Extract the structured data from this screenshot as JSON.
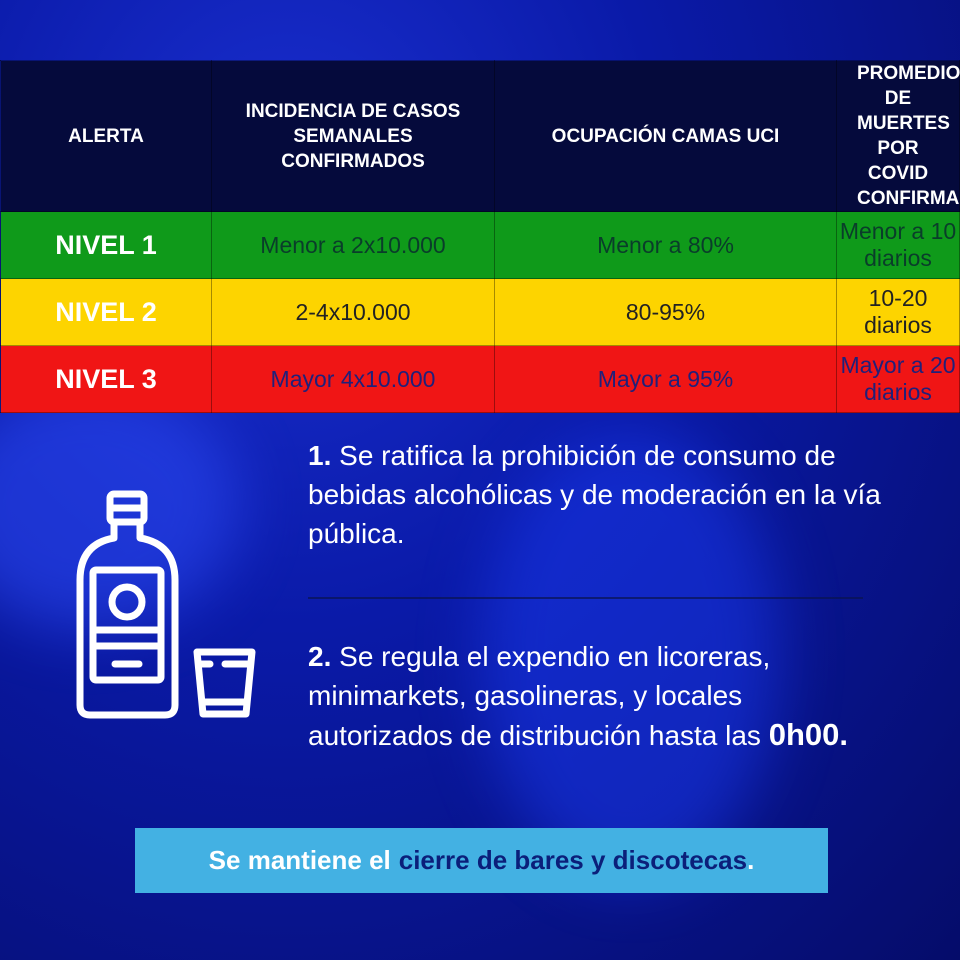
{
  "table": {
    "headers": [
      "ALERTA",
      "INCIDENCIA DE CASOS SEMANALES CONFIRMADOS",
      "OCUPACIÓN CAMAS UCI",
      "PROMEDIO DE MUERTES POR COVID CONFIRMADO"
    ],
    "rows": [
      {
        "level": "NIVEL 1",
        "incidence": "Menor a 2x10.000",
        "icu": "Menor a 80%",
        "deaths": "Menor a 10 diarios",
        "color": "#0f9a1a"
      },
      {
        "level": "NIVEL 2",
        "incidence": "2-4x10.000",
        "icu": "80-95%",
        "deaths": "10-20 diarios",
        "color": "#fdd400"
      },
      {
        "level": "NIVEL 3",
        "incidence": "Mayor 4x10.000",
        "icu": "Mayor a 95%",
        "deaths": "Mayor a 20 diarios",
        "color": "#f01515"
      }
    ]
  },
  "icon": "liquor-bottle-and-glass-icon",
  "points": [
    {
      "number": "1.",
      "text": " Se ratifica la prohibición de consumo de bebidas alcohólicas y de moderación en la vía pública."
    },
    {
      "number": "2.",
      "text": " Se regula el expendio en licoreras, minimarkets, gasolineras, y locales autorizados de distribución hasta las ",
      "bold_end": "0h00."
    }
  ],
  "banner": {
    "prefix": "Se mantiene el",
    "highlight": "cierre de bares y discotecas",
    "suffix": "."
  }
}
